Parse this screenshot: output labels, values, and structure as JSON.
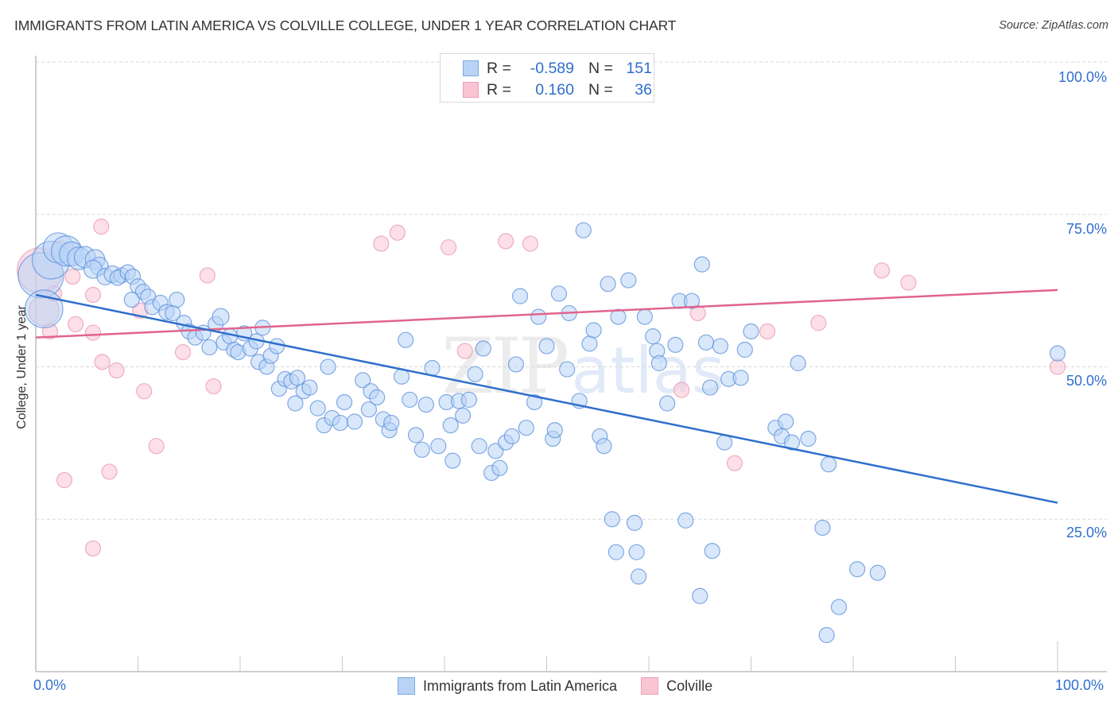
{
  "header": {
    "title": "IMMIGRANTS FROM LATIN AMERICA VS COLVILLE COLLEGE, UNDER 1 YEAR CORRELATION CHART",
    "source": "Source: ZipAtlas.com"
  },
  "watermark": {
    "zip": "ZIP",
    "atlas": "atlas"
  },
  "legend": {
    "rows": [
      {
        "r_label": "R =",
        "r_value": "-0.589",
        "n_label": "N =",
        "n_value": "151"
      },
      {
        "r_label": "R =",
        "r_value": "0.160",
        "n_label": "N =",
        "n_value": "36"
      }
    ]
  },
  "chart_data": {
    "type": "scatter",
    "title": "IMMIGRANTS FROM LATIN AMERICA VS COLVILLE COLLEGE, UNDER 1 YEAR CORRELATION CHART",
    "xlabel": "",
    "ylabel": "College, Under 1 year",
    "xlim": [
      0,
      100
    ],
    "ylim": [
      0,
      100
    ],
    "x_tick_labels": [
      "0.0%",
      "100.0%"
    ],
    "y_tick_labels": [
      {
        "value": 100,
        "label": "100.0%"
      },
      {
        "value": 75,
        "label": "75.0%"
      },
      {
        "value": 50,
        "label": "50.0%"
      },
      {
        "value": 25,
        "label": "25.0%"
      }
    ],
    "grid": "horizontal-dashed",
    "legend_placement": "bottom-center",
    "colors": {
      "blue": "#2f6fcc",
      "pink": "#e0648c",
      "blue_fill": "#b8d3f5",
      "pink_fill": "#f9c4d3"
    },
    "series": [
      {
        "name": "Immigrants from Latin America",
        "color": "blue",
        "R": -0.589,
        "N": 151,
        "trendline": {
          "x": [
            0,
            100
          ],
          "y": [
            61.8,
            27.7
          ]
        },
        "points": [
          [
            0.5,
            65.0,
            3
          ],
          [
            0.8,
            59.5,
            2.5
          ],
          [
            1.5,
            67.5,
            2.5
          ],
          [
            2.2,
            69.5,
            2
          ],
          [
            3.0,
            69.0,
            2
          ],
          [
            3.5,
            68.5,
            1.6
          ],
          [
            4.2,
            67.8,
            1.5
          ],
          [
            4.8,
            68.0,
            1.4
          ],
          [
            5.8,
            67.6,
            1.3
          ],
          [
            6.2,
            66.5,
            1.2
          ],
          [
            5.6,
            66.0,
            1.2
          ],
          [
            6.8,
            64.8,
            1.1
          ],
          [
            7.5,
            65.2,
            1.1
          ],
          [
            8.4,
            65.0,
            1
          ],
          [
            8.0,
            64.6,
            1
          ],
          [
            9.0,
            65.5,
            1
          ],
          [
            9.5,
            64.8,
            1
          ],
          [
            10.0,
            63.2,
            1
          ],
          [
            10.5,
            62.3,
            1
          ],
          [
            9.4,
            61.0,
            1
          ],
          [
            11.0,
            61.5,
            1
          ],
          [
            11.4,
            59.8,
            1
          ],
          [
            12.2,
            60.5,
            1
          ],
          [
            12.8,
            59.0,
            1
          ],
          [
            13.4,
            58.8,
            1
          ],
          [
            13.8,
            61.0,
            1
          ],
          [
            14.5,
            57.2,
            1
          ],
          [
            15.0,
            55.8,
            1
          ],
          [
            15.6,
            54.8,
            1
          ],
          [
            16.4,
            55.6,
            1
          ],
          [
            17.0,
            53.2,
            1
          ],
          [
            17.6,
            57.0,
            1
          ],
          [
            18.1,
            58.2,
            1.1
          ],
          [
            18.4,
            54.0,
            1
          ],
          [
            19.0,
            55.0,
            1
          ],
          [
            19.4,
            52.8,
            1
          ],
          [
            19.8,
            52.4,
            1
          ],
          [
            20.4,
            55.5,
            1
          ],
          [
            21.0,
            53.0,
            1
          ],
          [
            21.6,
            54.2,
            1
          ],
          [
            22.2,
            56.4,
            1
          ],
          [
            21.8,
            50.8,
            1
          ],
          [
            22.6,
            50.0,
            1
          ],
          [
            23.0,
            51.8,
            1
          ],
          [
            23.6,
            53.4,
            1
          ],
          [
            23.8,
            46.4,
            1
          ],
          [
            24.4,
            48.0,
            1
          ],
          [
            25.0,
            47.6,
            1
          ],
          [
            25.6,
            48.2,
            1
          ],
          [
            25.4,
            44.0,
            1
          ],
          [
            26.2,
            46.0,
            1
          ],
          [
            26.8,
            46.6,
            1
          ],
          [
            27.6,
            43.2,
            1
          ],
          [
            28.2,
            40.4,
            1
          ],
          [
            28.6,
            50.0,
            1
          ],
          [
            29.0,
            41.6,
            1
          ],
          [
            29.8,
            40.8,
            1
          ],
          [
            30.2,
            44.2,
            1
          ],
          [
            31.2,
            41.0,
            1
          ],
          [
            32.0,
            47.8,
            1
          ],
          [
            32.6,
            43.0,
            1
          ],
          [
            32.8,
            46.0,
            1
          ],
          [
            33.4,
            45.0,
            1
          ],
          [
            34.0,
            41.4,
            1
          ],
          [
            34.6,
            39.6,
            1
          ],
          [
            34.8,
            40.8,
            1
          ],
          [
            35.8,
            48.4,
            1
          ],
          [
            36.2,
            54.4,
            1
          ],
          [
            36.6,
            44.6,
            1
          ],
          [
            37.2,
            38.8,
            1
          ],
          [
            37.8,
            36.4,
            1
          ],
          [
            38.2,
            43.8,
            1
          ],
          [
            38.8,
            49.8,
            1
          ],
          [
            39.4,
            37.0,
            1
          ],
          [
            40.2,
            44.2,
            1
          ],
          [
            40.6,
            40.4,
            1
          ],
          [
            40.8,
            34.6,
            1
          ],
          [
            41.4,
            44.4,
            1
          ],
          [
            41.8,
            42.0,
            1
          ],
          [
            42.4,
            44.6,
            1
          ],
          [
            43.0,
            48.8,
            1
          ],
          [
            43.4,
            37.0,
            1
          ],
          [
            43.8,
            53.0,
            1
          ],
          [
            44.6,
            32.6,
            1
          ],
          [
            45.0,
            36.2,
            1
          ],
          [
            45.4,
            33.4,
            1
          ],
          [
            46.0,
            37.6,
            1
          ],
          [
            46.6,
            38.6,
            1
          ],
          [
            47.0,
            50.4,
            1
          ],
          [
            47.4,
            61.6,
            1
          ],
          [
            48.0,
            40.0,
            1
          ],
          [
            48.8,
            44.2,
            1
          ],
          [
            49.2,
            58.2,
            1
          ],
          [
            50.0,
            53.4,
            1
          ],
          [
            50.6,
            38.2,
            1
          ],
          [
            50.8,
            39.6,
            1
          ],
          [
            51.2,
            62.0,
            1
          ],
          [
            52.0,
            49.6,
            1
          ],
          [
            52.2,
            58.8,
            1
          ],
          [
            53.2,
            44.4,
            1
          ],
          [
            53.6,
            72.4,
            1
          ],
          [
            54.2,
            53.8,
            1
          ],
          [
            54.6,
            56.0,
            1
          ],
          [
            55.2,
            38.6,
            1
          ],
          [
            55.6,
            37.0,
            1
          ],
          [
            56.0,
            63.6,
            1
          ],
          [
            56.4,
            25.0,
            1
          ],
          [
            56.8,
            19.6,
            1
          ],
          [
            57.0,
            58.2,
            1
          ],
          [
            58.0,
            64.2,
            1
          ],
          [
            58.6,
            24.4,
            1
          ],
          [
            58.8,
            19.6,
            1
          ],
          [
            59.0,
            15.6,
            1
          ],
          [
            59.6,
            58.2,
            1
          ],
          [
            60.4,
            55.0,
            1
          ],
          [
            60.8,
            52.6,
            1
          ],
          [
            61.0,
            50.6,
            1
          ],
          [
            61.8,
            44.0,
            1
          ],
          [
            62.6,
            53.6,
            1
          ],
          [
            63.0,
            60.8,
            1
          ],
          [
            63.6,
            24.8,
            1
          ],
          [
            64.2,
            60.8,
            1
          ],
          [
            65.0,
            12.4,
            1
          ],
          [
            65.2,
            66.8,
            1
          ],
          [
            65.6,
            54.0,
            1
          ],
          [
            66.0,
            46.6,
            1
          ],
          [
            66.2,
            19.8,
            1
          ],
          [
            67.0,
            53.4,
            1
          ],
          [
            67.4,
            37.6,
            1
          ],
          [
            67.8,
            48.0,
            1
          ],
          [
            69.0,
            48.2,
            1
          ],
          [
            69.4,
            52.8,
            1
          ],
          [
            70.0,
            55.8,
            1
          ],
          [
            72.4,
            40.0,
            1
          ],
          [
            73.0,
            38.6,
            1
          ],
          [
            73.4,
            41.0,
            1
          ],
          [
            74.0,
            37.6,
            1
          ],
          [
            74.6,
            50.6,
            1
          ],
          [
            75.6,
            38.2,
            1
          ],
          [
            77.0,
            23.6,
            1
          ],
          [
            77.6,
            34.0,
            1
          ],
          [
            77.4,
            6.0,
            1
          ],
          [
            78.6,
            10.6,
            1
          ],
          [
            80.4,
            16.8,
            1
          ],
          [
            82.4,
            16.2,
            1
          ],
          [
            100.0,
            52.2,
            1
          ]
        ]
      },
      {
        "name": "Colville",
        "color": "pink",
        "R": 0.16,
        "N": 36,
        "trendline": {
          "x": [
            0,
            100
          ],
          "y": [
            54.8,
            62.6
          ]
        },
        "points": [
          [
            0.4,
            65.8,
            3
          ],
          [
            0.8,
            59.2,
            2
          ],
          [
            1.4,
            55.8,
            1
          ],
          [
            1.8,
            62.0,
            1
          ],
          [
            2.4,
            69.4,
            1
          ],
          [
            2.8,
            31.4,
            1
          ],
          [
            3.6,
            64.8,
            1
          ],
          [
            3.9,
            57.0,
            1
          ],
          [
            5.6,
            61.8,
            1
          ],
          [
            5.6,
            55.6,
            1
          ],
          [
            5.6,
            20.2,
            1
          ],
          [
            6.5,
            50.8,
            1
          ],
          [
            6.4,
            73.0,
            1
          ],
          [
            7.2,
            32.8,
            1
          ],
          [
            7.9,
            49.4,
            1
          ],
          [
            10.2,
            59.2,
            1
          ],
          [
            10.6,
            46.0,
            1
          ],
          [
            11.8,
            37.0,
            1
          ],
          [
            14.4,
            52.4,
            1
          ],
          [
            16.8,
            65.0,
            1
          ],
          [
            17.4,
            46.8,
            1
          ],
          [
            33.8,
            70.2,
            1
          ],
          [
            35.4,
            72.0,
            1
          ],
          [
            40.4,
            69.6,
            1
          ],
          [
            42.0,
            52.6,
            1
          ],
          [
            46.0,
            70.6,
            1
          ],
          [
            48.4,
            70.2,
            1
          ],
          [
            53.4,
            100.0,
            1
          ],
          [
            63.2,
            46.2,
            1
          ],
          [
            64.8,
            58.8,
            1
          ],
          [
            68.4,
            34.2,
            1
          ],
          [
            71.6,
            55.8,
            1
          ],
          [
            76.6,
            57.2,
            1
          ],
          [
            82.8,
            65.8,
            1
          ],
          [
            85.4,
            63.8,
            1
          ],
          [
            100.0,
            50.0,
            1
          ]
        ]
      }
    ]
  }
}
